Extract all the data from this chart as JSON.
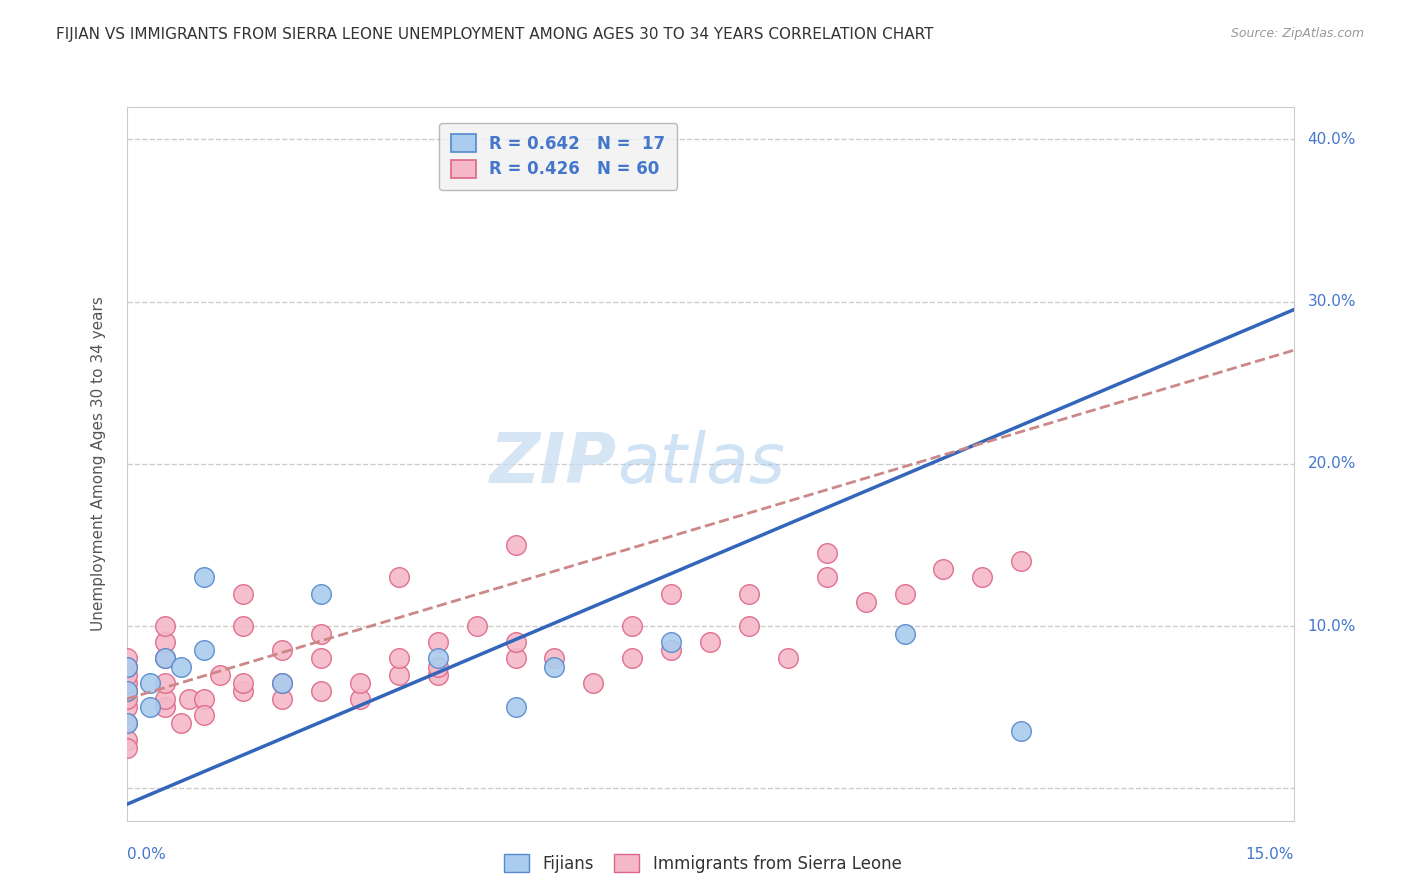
{
  "title": "FIJIAN VS IMMIGRANTS FROM SIERRA LEONE UNEMPLOYMENT AMONG AGES 30 TO 34 YEARS CORRELATION CHART",
  "source": "Source: ZipAtlas.com",
  "ylabel": "Unemployment Among Ages 30 to 34 years",
  "xlim": [
    0.0,
    0.15
  ],
  "ylim": [
    -0.02,
    0.42
  ],
  "watermark_zip": "ZIP",
  "watermark_atlas": "atlas",
  "fijian_R": "0.642",
  "fijian_N": "17",
  "sierra_leone_R": "0.426",
  "sierra_leone_N": "60",
  "fijian_color": "#aaccee",
  "fijian_edge_color": "#5588cc",
  "sierra_leone_color": "#f5b8c8",
  "sierra_leone_edge_color": "#dd6688",
  "fijian_line_color": "#3366bb",
  "sierra_leone_line_color": "#cc8888",
  "fijian_points_x": [
    0.0,
    0.0,
    0.0,
    0.003,
    0.003,
    0.005,
    0.007,
    0.01,
    0.01,
    0.02,
    0.025,
    0.04,
    0.05,
    0.055,
    0.07,
    0.1,
    0.115
  ],
  "fijian_points_y": [
    0.04,
    0.06,
    0.075,
    0.05,
    0.065,
    0.08,
    0.075,
    0.085,
    0.13,
    0.065,
    0.12,
    0.08,
    0.05,
    0.075,
    0.09,
    0.095,
    0.035
  ],
  "sierra_leone_points_x": [
    0.0,
    0.0,
    0.0,
    0.0,
    0.0,
    0.0,
    0.0,
    0.0,
    0.0,
    0.0,
    0.005,
    0.005,
    0.005,
    0.005,
    0.005,
    0.005,
    0.007,
    0.008,
    0.01,
    0.01,
    0.012,
    0.015,
    0.015,
    0.015,
    0.015,
    0.02,
    0.02,
    0.02,
    0.025,
    0.025,
    0.025,
    0.03,
    0.03,
    0.035,
    0.035,
    0.035,
    0.04,
    0.04,
    0.04,
    0.045,
    0.05,
    0.05,
    0.05,
    0.055,
    0.06,
    0.065,
    0.065,
    0.07,
    0.07,
    0.075,
    0.08,
    0.08,
    0.085,
    0.09,
    0.09,
    0.095,
    0.1,
    0.105,
    0.11,
    0.115
  ],
  "sierra_leone_points_y": [
    0.04,
    0.05,
    0.055,
    0.06,
    0.065,
    0.07,
    0.075,
    0.08,
    0.03,
    0.025,
    0.05,
    0.055,
    0.065,
    0.08,
    0.09,
    0.1,
    0.04,
    0.055,
    0.055,
    0.045,
    0.07,
    0.06,
    0.065,
    0.1,
    0.12,
    0.055,
    0.065,
    0.085,
    0.06,
    0.08,
    0.095,
    0.055,
    0.065,
    0.07,
    0.08,
    0.13,
    0.07,
    0.075,
    0.09,
    0.1,
    0.08,
    0.09,
    0.15,
    0.08,
    0.065,
    0.08,
    0.1,
    0.085,
    0.12,
    0.09,
    0.1,
    0.12,
    0.08,
    0.13,
    0.145,
    0.115,
    0.12,
    0.135,
    0.13,
    0.14
  ],
  "title_fontsize": 11,
  "source_fontsize": 9,
  "legend_fontsize": 12,
  "axis_label_fontsize": 11,
  "tick_fontsize": 11,
  "watermark_fontsize_zip": 44,
  "watermark_fontsize_atlas": 44,
  "watermark_color": "#c8ddf0",
  "watermark_alpha": 0.6,
  "legend_box_color": "#f0f0f0",
  "legend_border_color": "#aaaaaa",
  "grid_color": "#cccccc",
  "grid_style": "--",
  "background_color": "#ffffff",
  "plot_bg_color": "#ffffff",
  "fijian_line_x0": 0.0,
  "fijian_line_y0": -0.01,
  "fijian_line_x1": 0.15,
  "fijian_line_y1": 0.295,
  "sierra_leone_line_x0": 0.0,
  "sierra_leone_line_y0": 0.055,
  "sierra_leone_line_x1": 0.15,
  "sierra_leone_line_y1": 0.27
}
